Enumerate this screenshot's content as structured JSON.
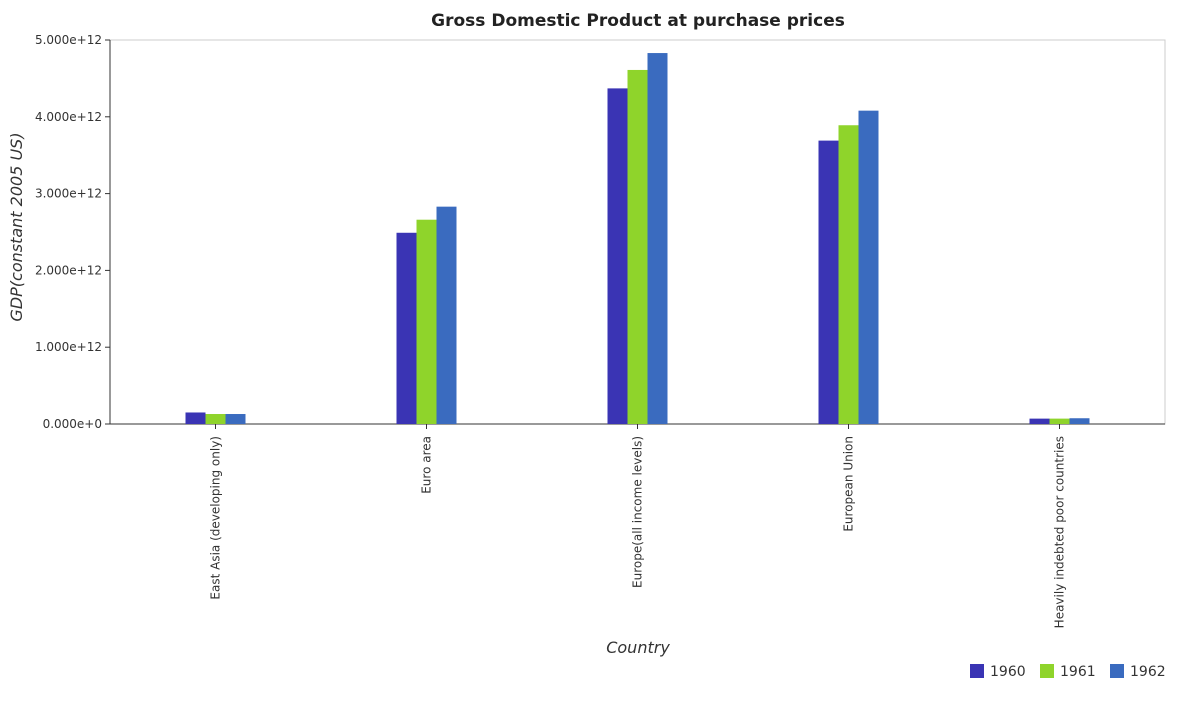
{
  "chart_data": {
    "type": "bar",
    "title": "Gross Domestic Product at purchase prices",
    "xlabel": "Country",
    "ylabel": "GDP(constant 2005 US)",
    "categories": [
      "East Asia (developing only)",
      "Euro area",
      "Europe(all income levels)",
      "European Union",
      "Heavily indebted poor countries"
    ],
    "series": [
      {
        "name": "1960",
        "color": "#3a34b4",
        "values": [
          150000000000.0,
          2490000000000.0,
          4370000000000.0,
          3690000000000.0,
          70000000000.0
        ]
      },
      {
        "name": "1961",
        "color": "#8fd42b",
        "values": [
          130000000000.0,
          2660000000000.0,
          4610000000000.0,
          3890000000000.0,
          70000000000.0
        ]
      },
      {
        "name": "1962",
        "color": "#3a6bbf",
        "values": [
          130000000000.0,
          2830000000000.0,
          4830000000000.0,
          4080000000000.0,
          75000000000.0
        ]
      }
    ],
    "ylim": [
      0,
      5000000000000.0
    ],
    "yticks": [
      0,
      1000000000000.0,
      2000000000000.0,
      3000000000000.0,
      4000000000000.0,
      5000000000000.0
    ],
    "ytick_labels": [
      "0.000e+0",
      "1.000e+12",
      "2.000e+12",
      "3.000e+12",
      "4.000e+12",
      "5.000e+12"
    ],
    "grid": false,
    "legend_position": "bottom-right"
  }
}
